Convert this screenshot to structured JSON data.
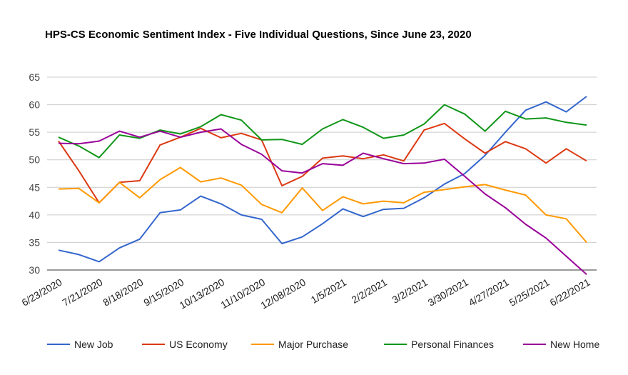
{
  "chart_data": {
    "type": "line",
    "title": "HPS-CS Economic Sentiment Index - Five Individual Questions, Since June 23, 2020",
    "xlabel": "",
    "ylabel": "",
    "ylim": [
      30,
      65
    ],
    "yticks": [
      30,
      35,
      40,
      45,
      50,
      55,
      60,
      65
    ],
    "grid": true,
    "legend_position": "bottom",
    "x": [
      "6/23/2020",
      "7/7/2020",
      "7/21/2020",
      "8/4/2020",
      "8/18/2020",
      "9/1/2020",
      "9/15/2020",
      "9/29/2020",
      "10/13/2020",
      "10/27/2020",
      "11/10/2020",
      "11/24/2020",
      "12/08/2020",
      "12/22/2020",
      "1/5/2021",
      "1/19/2021",
      "2/2/2021",
      "2/16/2021",
      "3/2/2021",
      "3/16/2021",
      "3/30/2021",
      "4/13/2021",
      "4/27/2021",
      "5/11/2021",
      "5/25/2021",
      "6/8/2021",
      "6/22/2021"
    ],
    "xtick_labels": [
      "6/23/2020",
      "7/21/2020",
      "8/18/2020",
      "9/15/2020",
      "10/13/2020",
      "11/10/2020",
      "12/08/2020",
      "1/5/2021",
      "2/2/2021",
      "3/2/2021",
      "3/30/2021",
      "4/27/2021",
      "5/25/2021",
      "6/22/2021"
    ],
    "series": [
      {
        "name": "New Job",
        "color": "#3366cc",
        "values": [
          33.6,
          32.8,
          31.5,
          34.0,
          35.6,
          40.4,
          40.9,
          43.4,
          42.0,
          40.0,
          39.2,
          34.8,
          36.0,
          38.4,
          41.1,
          39.7,
          41.0,
          41.2,
          43.1,
          45.6,
          47.5,
          50.8,
          55.0,
          59.0,
          60.5,
          58.7,
          61.5
        ]
      },
      {
        "name": "US Economy",
        "color": "#dc3912",
        "values": [
          53.4,
          48.0,
          42.2,
          45.9,
          46.2,
          52.7,
          54.1,
          55.7,
          54.0,
          54.8,
          53.6,
          45.3,
          47.0,
          50.3,
          50.7,
          50.2,
          50.9,
          49.8,
          55.4,
          56.6,
          53.8,
          51.2,
          53.3,
          52.0,
          49.4,
          52.0,
          49.8
        ]
      },
      {
        "name": "Major Purchase",
        "color": "#ff9900",
        "values": [
          44.7,
          44.8,
          42.2,
          45.9,
          43.1,
          46.4,
          48.6,
          46.0,
          46.7,
          45.4,
          41.9,
          40.4,
          44.9,
          40.8,
          43.3,
          42.0,
          42.5,
          42.2,
          44.1,
          44.6,
          45.1,
          45.5,
          44.5,
          43.6,
          40.0,
          39.3,
          35.0
        ]
      },
      {
        "name": "Personal Finances",
        "color": "#109618",
        "values": [
          54.1,
          52.5,
          50.4,
          54.5,
          53.9,
          55.4,
          54.7,
          56.0,
          58.2,
          57.2,
          53.6,
          53.7,
          52.8,
          55.6,
          57.3,
          55.9,
          53.9,
          54.5,
          56.5,
          60.0,
          58.3,
          55.2,
          58.8,
          57.4,
          57.6,
          56.8,
          56.3
        ]
      },
      {
        "name": "New Home",
        "color": "#990099",
        "values": [
          53.0,
          52.9,
          53.4,
          55.2,
          54.1,
          55.2,
          54.1,
          55.0,
          55.6,
          52.8,
          51.0,
          48.0,
          47.6,
          49.3,
          49.0,
          51.2,
          50.2,
          49.3,
          49.4,
          50.1,
          47.0,
          43.8,
          41.3,
          38.3,
          35.8,
          32.5,
          29.2
        ]
      }
    ]
  }
}
